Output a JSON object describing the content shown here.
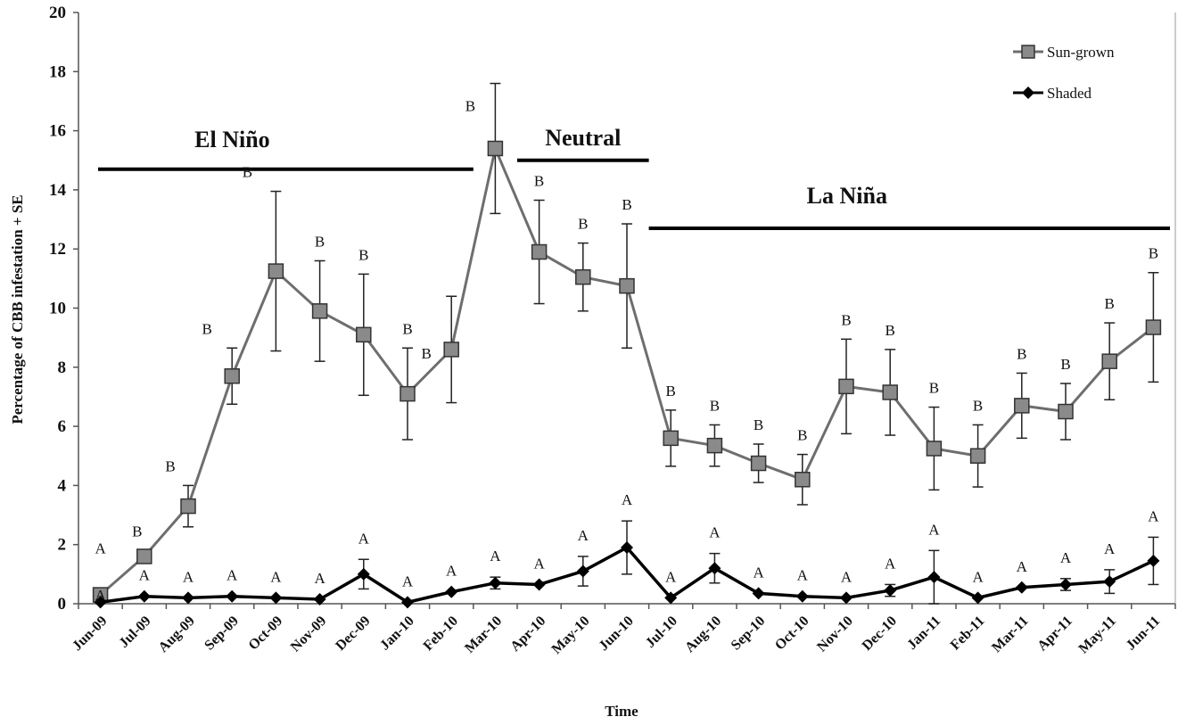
{
  "chart_data": {
    "type": "line",
    "xlabel": "Time",
    "ylabel": "Percentage of CBB infestation + SE",
    "ylim": [
      0,
      20
    ],
    "yticks": [
      0,
      2,
      4,
      6,
      8,
      10,
      12,
      14,
      16,
      18,
      20
    ],
    "grid": false,
    "legend_position": "top-right",
    "categories": [
      "Jun-09",
      "Jul-09",
      "Aug-09",
      "Sep-09",
      "Oct-09",
      "Nov-09",
      "Dec-09",
      "Jan-10",
      "Feb-10",
      "Mar-10",
      "Apr-10",
      "May-10",
      "Jun-10",
      "Jul-10",
      "Aug-10",
      "Sep-10",
      "Oct-10",
      "Nov-10",
      "Dec-10",
      "Jan-11",
      "Feb-11",
      "Mar-11",
      "Apr-11",
      "May-11",
      "Jun-11"
    ],
    "series": [
      {
        "name": "Sun-grown",
        "color": "#6e6e6e",
        "marker": "square",
        "values": [
          0.3,
          1.6,
          3.3,
          7.7,
          11.25,
          9.9,
          9.1,
          7.1,
          8.6,
          15.4,
          11.9,
          11.05,
          10.75,
          5.6,
          5.35,
          4.75,
          4.2,
          7.35,
          7.15,
          5.25,
          5.0,
          6.7,
          6.5,
          8.2,
          9.35
        ],
        "se": [
          0.2,
          0.2,
          0.7,
          0.95,
          2.7,
          1.7,
          2.05,
          1.55,
          1.8,
          2.2,
          1.75,
          1.15,
          2.1,
          0.95,
          0.7,
          0.65,
          0.85,
          1.6,
          1.45,
          1.4,
          1.05,
          1.1,
          0.95,
          1.3,
          1.85
        ],
        "significance": [
          "A",
          "B",
          "B",
          "B",
          "B",
          "B",
          "B",
          "B",
          "B",
          "B",
          "B",
          "B",
          "B",
          "B",
          "B",
          "B",
          "B",
          "B",
          "B",
          "B",
          "B",
          "B",
          "B",
          "B",
          "B"
        ]
      },
      {
        "name": "Shaded",
        "color": "#000000",
        "marker": "diamond",
        "values": [
          0.05,
          0.25,
          0.2,
          0.25,
          0.2,
          0.15,
          1.0,
          0.05,
          0.4,
          0.7,
          0.65,
          1.1,
          1.9,
          0.2,
          1.2,
          0.35,
          0.25,
          0.2,
          0.45,
          0.9,
          0.2,
          0.55,
          0.65,
          0.75,
          1.45
        ],
        "se": [
          0,
          0,
          0,
          0,
          0,
          0,
          0.5,
          0,
          0,
          0.2,
          0,
          0.5,
          0.9,
          0,
          0.5,
          0,
          0,
          0,
          0.2,
          0.9,
          0,
          0,
          0.2,
          0.4,
          0.8
        ],
        "significance": [
          "A",
          "A",
          "A",
          "A",
          "A",
          "A",
          "A",
          "A",
          "A",
          "A",
          "A",
          "A",
          "A",
          "A",
          "A",
          "A",
          "A",
          "A",
          "A",
          "A",
          "A",
          "A",
          "A",
          "A",
          "A"
        ]
      }
    ],
    "phases": [
      {
        "label": "El Niño",
        "start_index": 0,
        "end_index": 8.5,
        "level": 14.7
      },
      {
        "label": "Neutral",
        "start_index": 9.5,
        "end_index": 12.5,
        "level": 15.0
      },
      {
        "label": "La Niña",
        "start_index": 12.5,
        "end_index": 24.5,
        "level": 12.7
      }
    ]
  }
}
